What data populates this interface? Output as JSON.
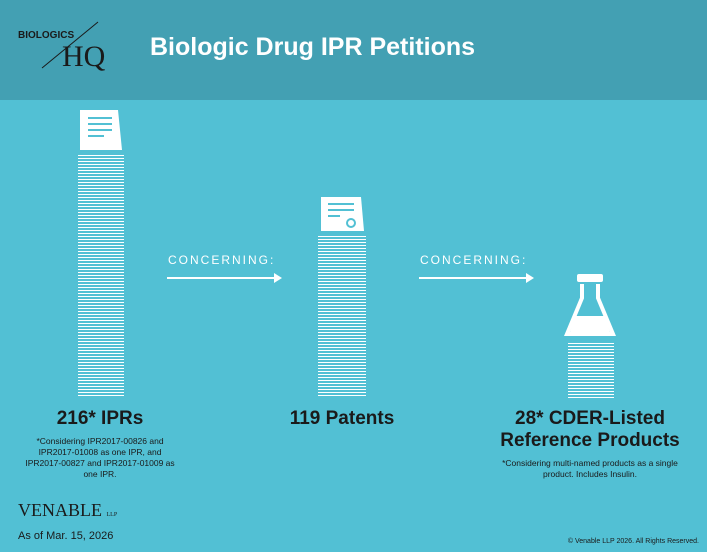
{
  "header": {
    "logo_top": "BIOLOGICS",
    "logo_bottom": "HQ",
    "title": "Biologic Drug IPR Petitions"
  },
  "columns": [
    {
      "heading": "216* IPRs",
      "note": "*Considering IPR2017-00826 and IPR2017-01008 as one IPR, and IPR2017-00827 and IPR2017-01009 as one IPR."
    },
    {
      "heading": "119 Patents"
    },
    {
      "heading": "28* CDER-Listed Reference Products",
      "note": "*Considering multi-named products as a single product.  Includes Insulin."
    }
  ],
  "connectors": [
    "CONCERNING:",
    "CONCERNING:"
  ],
  "footer": {
    "logo": "VENABLE",
    "logo_suffix": "LLP",
    "date": "As of Mar. 15, 2026",
    "copyright": "© Venable LLP 2026. All Rights Reserved."
  }
}
